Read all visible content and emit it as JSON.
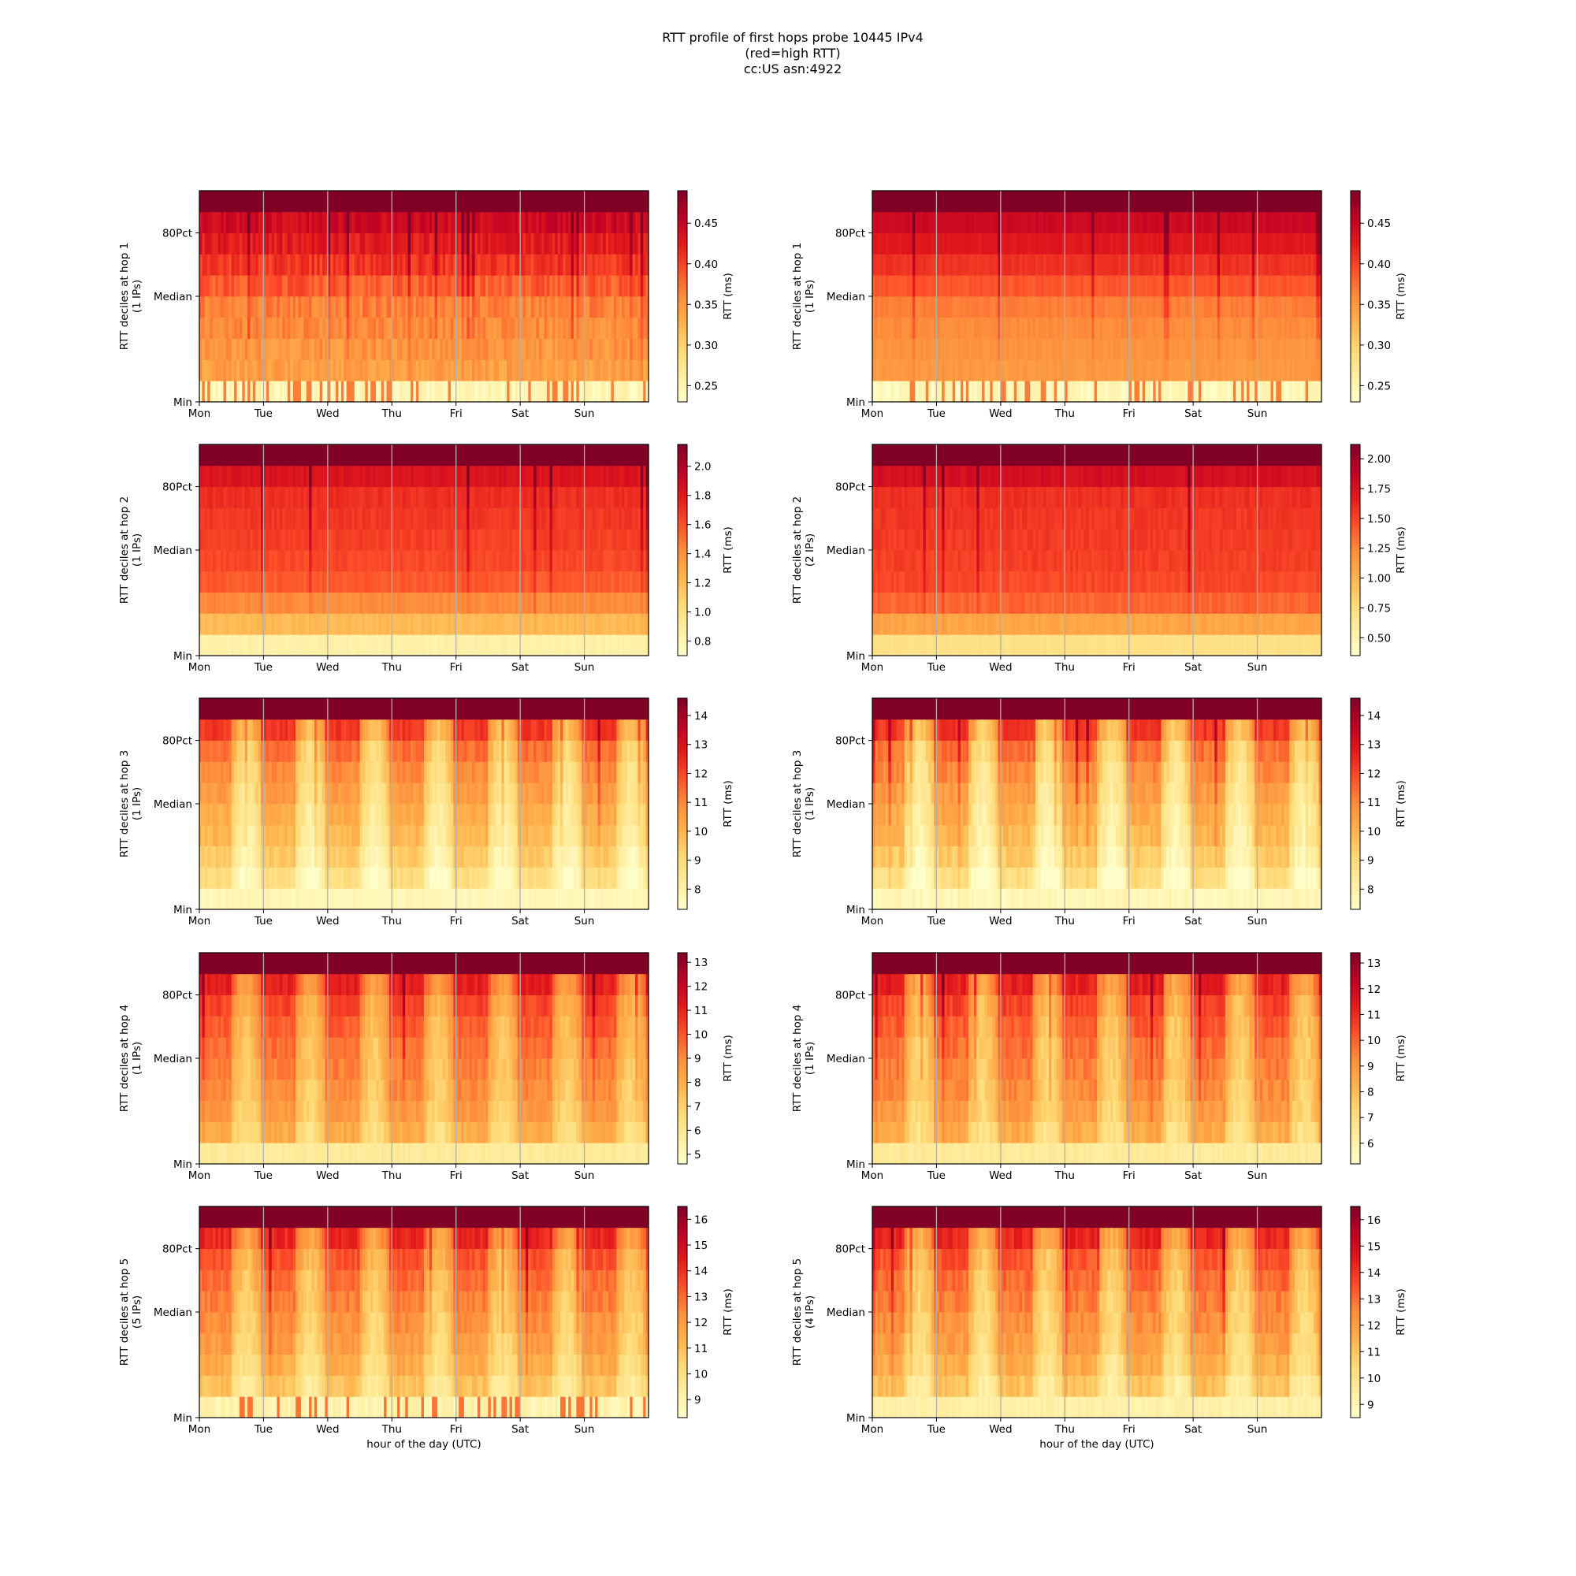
{
  "title": {
    "line1": "RTT profile of first hops probe 10445 IPv4",
    "line2": "(red=high RTT)",
    "line3": "cc:US asn:4922"
  },
  "chart_data": {
    "type": "heatmap",
    "x_tick_labels": [
      "Mon",
      "Tue",
      "Wed",
      "Thu",
      "Fri",
      "Sat",
      "Sun"
    ],
    "y_tick_labels": [
      "Min",
      "Median",
      "80Pct"
    ],
    "xlabel": "hour of the day (UTC)",
    "colorbar_label": "RTT (ms)",
    "colormap": [
      "#ffffcc",
      "#ffeda0",
      "#fed976",
      "#feb24c",
      "#fd8d3c",
      "#fc4e2a",
      "#e31a1c",
      "#bd0026",
      "#800026"
    ],
    "gridlines": "vertical at day boundaries",
    "panels": [
      {
        "hop": 1,
        "column": "left",
        "ylabel": "RTT deciles at hop 1",
        "ips": "(1 IPs)",
        "cbar_ticks": [
          "0.25",
          "0.30",
          "0.35",
          "0.40",
          "0.45"
        ],
        "cbar_range": [
          0.23,
          0.49
        ],
        "decile_levels": [
          0.08,
          0.44,
          0.47,
          0.5,
          0.52,
          0.6,
          0.68,
          0.75,
          0.82,
          1.0
        ],
        "variability": 0.12,
        "lowest_decile_flicker": true,
        "daily_pattern": 0
      },
      {
        "hop": 1,
        "column": "right",
        "ylabel": "RTT deciles at hop 1",
        "ips": "(1 IPs)",
        "cbar_ticks": [
          "0.25",
          "0.30",
          "0.35",
          "0.40",
          "0.45"
        ],
        "cbar_range": [
          0.23,
          0.49
        ],
        "decile_levels": [
          0.08,
          0.46,
          0.48,
          0.5,
          0.53,
          0.61,
          0.69,
          0.76,
          0.83,
          1.0
        ],
        "variability": 0.04,
        "lowest_decile_flicker": true,
        "daily_pattern": 0
      },
      {
        "hop": 2,
        "column": "left",
        "ylabel": "RTT deciles at hop 2",
        "ips": "(1 IPs)",
        "cbar_ticks": [
          "0.8",
          "1.0",
          "1.2",
          "1.4",
          "1.6",
          "1.8",
          "2.0"
        ],
        "cbar_range": [
          0.7,
          2.15
        ],
        "decile_levels": [
          0.1,
          0.35,
          0.5,
          0.6,
          0.64,
          0.66,
          0.68,
          0.7,
          0.78,
          1.0
        ],
        "variability": 0.05,
        "lowest_decile_flicker": false,
        "daily_pattern": 0
      },
      {
        "hop": 2,
        "column": "right",
        "ylabel": "RTT deciles at hop 2",
        "ips": "(2 IPs)",
        "cbar_ticks": [
          "0.50",
          "0.75",
          "1.00",
          "1.25",
          "1.50",
          "1.75",
          "2.00"
        ],
        "cbar_range": [
          0.35,
          2.12
        ],
        "decile_levels": [
          0.2,
          0.42,
          0.58,
          0.64,
          0.66,
          0.67,
          0.68,
          0.7,
          0.8,
          1.0
        ],
        "variability": 0.05,
        "lowest_decile_flicker": false,
        "daily_pattern": 0
      },
      {
        "hop": 3,
        "column": "left",
        "ylabel": "RTT deciles at hop 3",
        "ips": "(1 IPs)",
        "cbar_ticks": [
          "8",
          "9",
          "10",
          "11",
          "12",
          "13",
          "14"
        ],
        "cbar_range": [
          7.3,
          14.6
        ],
        "decile_levels": [
          0.06,
          0.22,
          0.3,
          0.36,
          0.4,
          0.45,
          0.5,
          0.56,
          0.68,
          1.0
        ],
        "variability": 0.08,
        "lowest_decile_flicker": false,
        "daily_pattern": 0.35
      },
      {
        "hop": 3,
        "column": "right",
        "ylabel": "RTT deciles at hop 3",
        "ips": "(1 IPs)",
        "cbar_ticks": [
          "8",
          "9",
          "10",
          "11",
          "12",
          "13",
          "14"
        ],
        "cbar_range": [
          7.3,
          14.6
        ],
        "decile_levels": [
          0.06,
          0.22,
          0.3,
          0.36,
          0.4,
          0.45,
          0.5,
          0.56,
          0.68,
          1.0
        ],
        "variability": 0.1,
        "lowest_decile_flicker": false,
        "daily_pattern": 0.38
      },
      {
        "hop": 4,
        "column": "left",
        "ylabel": "RTT deciles at hop 4",
        "ips": "(1 IPs)",
        "cbar_ticks": [
          "5",
          "6",
          "7",
          "8",
          "9",
          "10",
          "11",
          "12",
          "13"
        ],
        "cbar_range": [
          4.6,
          13.4
        ],
        "decile_levels": [
          0.14,
          0.4,
          0.46,
          0.5,
          0.53,
          0.56,
          0.6,
          0.65,
          0.74,
          1.0
        ],
        "variability": 0.08,
        "lowest_decile_flicker": false,
        "daily_pattern": 0.3
      },
      {
        "hop": 4,
        "column": "right",
        "ylabel": "RTT deciles at hop 4",
        "ips": "(1 IPs)",
        "cbar_ticks": [
          "6",
          "7",
          "8",
          "9",
          "10",
          "11",
          "12",
          "13"
        ],
        "cbar_range": [
          5.2,
          13.4
        ],
        "decile_levels": [
          0.14,
          0.4,
          0.46,
          0.5,
          0.53,
          0.56,
          0.6,
          0.65,
          0.74,
          1.0
        ],
        "variability": 0.1,
        "lowest_decile_flicker": false,
        "daily_pattern": 0.33
      },
      {
        "hop": 5,
        "column": "left",
        "ylabel": "RTT deciles at hop 5",
        "ips": "(5 IPs)",
        "cbar_ticks": [
          "9",
          "10",
          "11",
          "12",
          "13",
          "14",
          "15",
          "16"
        ],
        "cbar_range": [
          8.3,
          16.5
        ],
        "decile_levels": [
          0.1,
          0.33,
          0.4,
          0.45,
          0.49,
          0.53,
          0.57,
          0.62,
          0.72,
          1.0
        ],
        "variability": 0.09,
        "lowest_decile_flicker": true,
        "daily_pattern": 0.3
      },
      {
        "hop": 5,
        "column": "right",
        "ylabel": "RTT deciles at hop 5",
        "ips": "(4 IPs)",
        "cbar_ticks": [
          "9",
          "10",
          "11",
          "12",
          "13",
          "14",
          "15",
          "16"
        ],
        "cbar_range": [
          8.5,
          16.5
        ],
        "decile_levels": [
          0.1,
          0.33,
          0.4,
          0.45,
          0.49,
          0.53,
          0.57,
          0.62,
          0.72,
          1.0
        ],
        "variability": 0.1,
        "lowest_decile_flicker": false,
        "daily_pattern": 0.33
      }
    ]
  }
}
